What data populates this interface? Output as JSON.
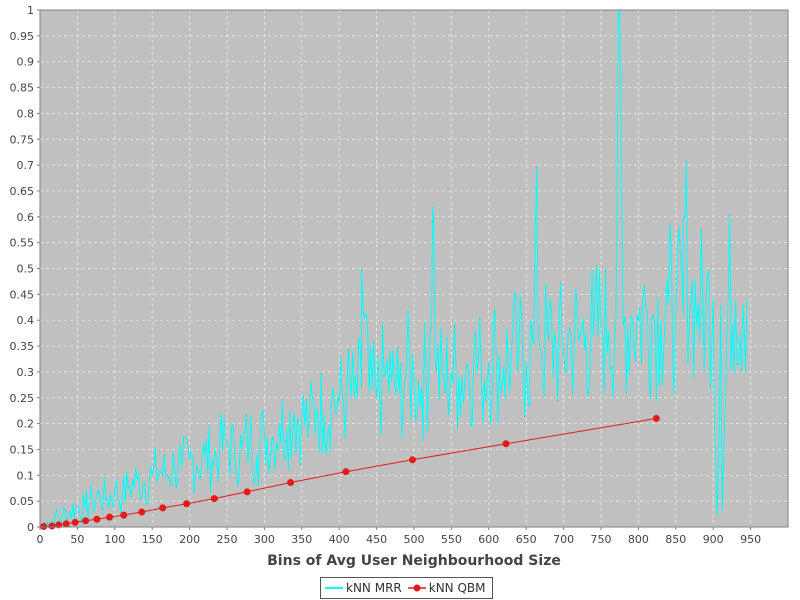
{
  "chart_data": {
    "type": "line",
    "title": "",
    "xlabel": "Bins of Avg User Neighbourhood Size",
    "ylabel": "",
    "xlim": [
      0,
      1000
    ],
    "ylim": [
      0,
      1
    ],
    "x_ticks": [
      "0",
      "50",
      "100",
      "150",
      "200",
      "250",
      "300",
      "350",
      "400",
      "450",
      "500",
      "550",
      "600",
      "650",
      "700",
      "750",
      "800",
      "850",
      "900",
      "950"
    ],
    "y_ticks": [
      "0",
      "0.05",
      "0.1",
      "0.15",
      "0.2",
      "0.25",
      "0.3",
      "0.35",
      "0.4",
      "0.45",
      "0.5",
      "0.55",
      "0.6",
      "0.65",
      "0.7",
      "0.75",
      "0.8",
      "0.85",
      "0.9",
      "0.95",
      "1"
    ],
    "grid": true,
    "plot_background": "#c0c0c0",
    "legend_position": "bottom-center",
    "series": [
      {
        "name": "kNN MRR",
        "color": "#00ffff",
        "marker": "none",
        "x": [
          2,
          10,
          20,
          30,
          40,
          50,
          60,
          70,
          80,
          90,
          100,
          110,
          120,
          130,
          140,
          150,
          160,
          170,
          180,
          190,
          200,
          210,
          220,
          230,
          240,
          250,
          260,
          270,
          280,
          290,
          300,
          310,
          320,
          330,
          340,
          350,
          360,
          370,
          380,
          390,
          400,
          410,
          420,
          430,
          440,
          450,
          460,
          470,
          480,
          490,
          500,
          510,
          520,
          530,
          540,
          550,
          560,
          570,
          580,
          590,
          600,
          610,
          620,
          630,
          640,
          650,
          660,
          670,
          680,
          690,
          700,
          710,
          720,
          730,
          740,
          750,
          760,
          770,
          780,
          790,
          800,
          810,
          820,
          830,
          840,
          850,
          860,
          870,
          880,
          890,
          900,
          910,
          920,
          930,
          940,
          945
        ],
        "y": [
          0.0,
          0.01,
          0.015,
          0.02,
          0.03,
          0.04,
          0.035,
          0.05,
          0.06,
          0.055,
          0.07,
          0.06,
          0.08,
          0.09,
          0.085,
          0.1,
          0.11,
          0.1,
          0.12,
          0.115,
          0.13,
          0.12,
          0.14,
          0.13,
          0.15,
          0.16,
          0.14,
          0.15,
          0.17,
          0.14,
          0.18,
          0.17,
          0.2,
          0.19,
          0.22,
          0.21,
          0.2,
          0.23,
          0.22,
          0.25,
          0.24,
          0.26,
          0.25,
          0.27,
          0.26,
          0.25,
          0.29,
          0.28,
          0.26,
          0.3,
          0.29,
          0.27,
          0.31,
          0.3,
          0.28,
          0.3,
          0.29,
          0.31,
          0.32,
          0.3,
          0.32,
          0.33,
          0.31,
          0.34,
          0.33,
          0.32,
          0.35,
          0.34,
          0.36,
          0.35,
          0.34,
          0.37,
          0.36,
          0.38,
          0.37,
          0.39,
          0.38,
          0.4,
          0.39,
          0.41,
          0.4,
          0.42,
          0.41,
          0.4,
          0.43,
          0.42,
          0.41,
          0.44,
          0.43,
          0.42,
          0.44,
          0.43,
          0.45,
          0.44,
          0.43,
          0.44
        ],
        "spikes": [
          {
            "x": 525,
            "y": 0.62
          },
          {
            "x": 773,
            "y": 1.0
          },
          {
            "x": 860,
            "y": 0.6
          },
          {
            "x": 430,
            "y": 0.5
          },
          {
            "x": 662,
            "y": 0.57
          },
          {
            "x": 905,
            "y": 0.02
          },
          {
            "x": 912,
            "y": 0.03
          }
        ]
      },
      {
        "name": "kNN QBM",
        "color": "#e31a1c",
        "marker": "circle",
        "x": [
          5,
          16,
          25,
          35,
          47,
          61,
          76,
          93,
          112,
          136,
          164,
          196,
          233,
          277,
          335,
          409,
          498,
          623,
          824
        ],
        "y": [
          0.001,
          0.002,
          0.004,
          0.006,
          0.009,
          0.012,
          0.015,
          0.019,
          0.023,
          0.029,
          0.037,
          0.045,
          0.055,
          0.068,
          0.086,
          0.107,
          0.13,
          0.161,
          0.21
        ]
      }
    ]
  }
}
